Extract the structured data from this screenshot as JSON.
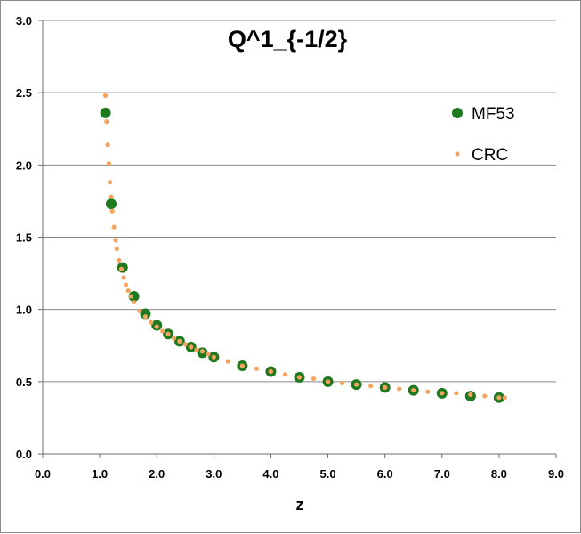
{
  "chart_data": {
    "type": "scatter",
    "title": "Q^1_{-1/2}",
    "xlabel": "z",
    "ylabel": "",
    "xlim": [
      0,
      9
    ],
    "ylim": [
      0,
      3
    ],
    "x_ticks": [
      "0.0",
      "1.0",
      "2.0",
      "3.0",
      "4.0",
      "5.0",
      "6.0",
      "7.0",
      "8.0",
      "9.0"
    ],
    "y_ticks": [
      "0.0",
      "0.5",
      "1.0",
      "1.5",
      "2.0",
      "2.5",
      "3.0"
    ],
    "grid": "horizontal",
    "legend_position": "right",
    "series": [
      {
        "name": "MF53",
        "color": "#1f7a1f",
        "marker": "large-circle",
        "x": [
          1.1,
          1.2,
          1.4,
          1.6,
          1.8,
          2.0,
          2.2,
          2.4,
          2.6,
          2.8,
          3.0,
          3.5,
          4.0,
          4.5,
          5.0,
          5.5,
          6.0,
          6.5,
          7.0,
          7.5,
          8.0
        ],
        "y": [
          2.36,
          1.73,
          1.29,
          1.09,
          0.97,
          0.89,
          0.83,
          0.78,
          0.74,
          0.7,
          0.67,
          0.61,
          0.57,
          0.53,
          0.5,
          0.48,
          0.46,
          0.44,
          0.42,
          0.4,
          0.39
        ]
      },
      {
        "name": "CRC",
        "color": "#f4a460",
        "marker": "small-circle",
        "x": [
          1.1,
          1.12,
          1.14,
          1.16,
          1.18,
          1.2,
          1.22,
          1.25,
          1.28,
          1.3,
          1.34,
          1.38,
          1.42,
          1.46,
          1.5,
          1.55,
          1.6,
          1.7,
          1.8,
          1.9,
          2.0,
          2.1,
          2.2,
          2.3,
          2.4,
          2.5,
          2.6,
          2.7,
          2.8,
          2.9,
          3.0,
          3.25,
          3.5,
          3.75,
          4.0,
          4.25,
          4.5,
          4.75,
          5.0,
          5.25,
          5.5,
          5.75,
          6.0,
          6.25,
          6.5,
          6.75,
          7.0,
          7.25,
          7.5,
          7.75,
          8.0,
          8.1
        ],
        "y": [
          2.48,
          2.3,
          2.14,
          2.01,
          1.88,
          1.78,
          1.68,
          1.57,
          1.48,
          1.42,
          1.34,
          1.28,
          1.22,
          1.17,
          1.13,
          1.09,
          1.05,
          0.99,
          0.95,
          0.91,
          0.88,
          0.85,
          0.83,
          0.8,
          0.78,
          0.76,
          0.74,
          0.72,
          0.71,
          0.69,
          0.67,
          0.64,
          0.61,
          0.59,
          0.57,
          0.55,
          0.53,
          0.52,
          0.5,
          0.49,
          0.48,
          0.47,
          0.46,
          0.45,
          0.44,
          0.43,
          0.42,
          0.42,
          0.41,
          0.4,
          0.39,
          0.39
        ]
      }
    ]
  }
}
